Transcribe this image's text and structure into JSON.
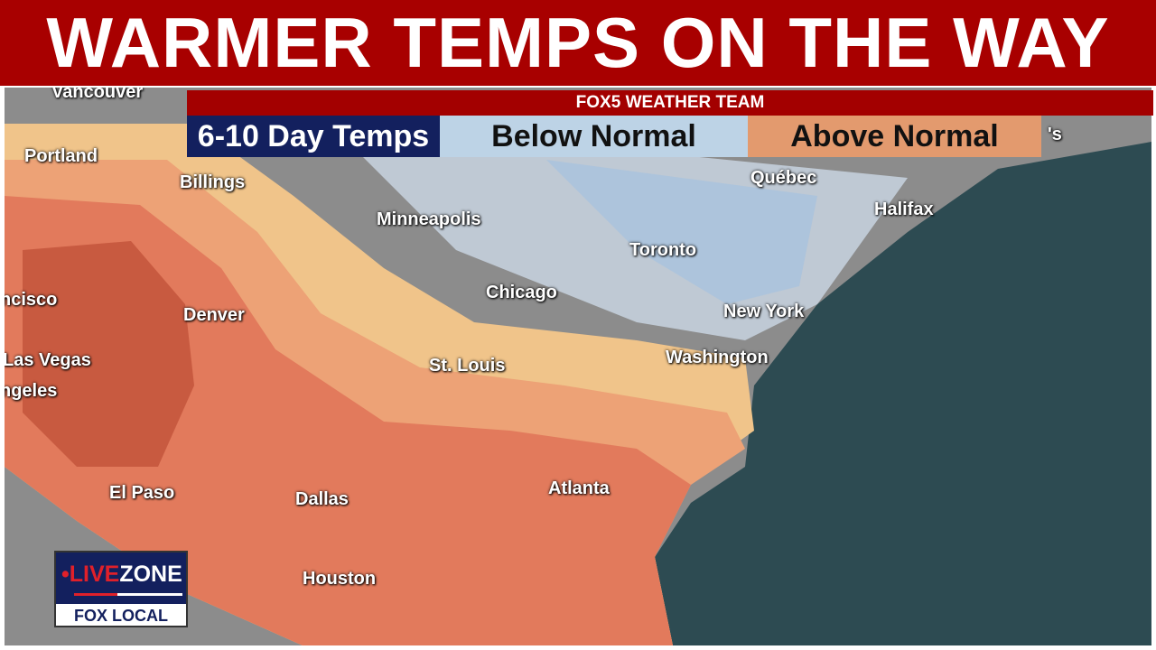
{
  "headline": "WARMER TEMPS ON THE WAY",
  "team_bar": "FOX5 WEATHER TEAM",
  "legend": {
    "title": "6-10 Day Temps",
    "below": "Below Normal",
    "above": "Above Normal",
    "below_color": "#bdd3e6",
    "above_color": "#e39a6e"
  },
  "cities": [
    "Vancouver",
    "Portland",
    "Billings",
    "Minneapolis",
    "Québec",
    "Halifax",
    "Toronto",
    "ncisco",
    "Denver",
    "Chicago",
    "New York",
    "Las Vegas",
    "St. Louis",
    "Washington",
    "ngeles",
    "El Paso",
    "Dallas",
    "Atlanta",
    "Houston",
    "'s"
  ],
  "logo": {
    "live": "•LIVE",
    "zone": "ZONE",
    "network": "FOX LOCAL"
  }
}
